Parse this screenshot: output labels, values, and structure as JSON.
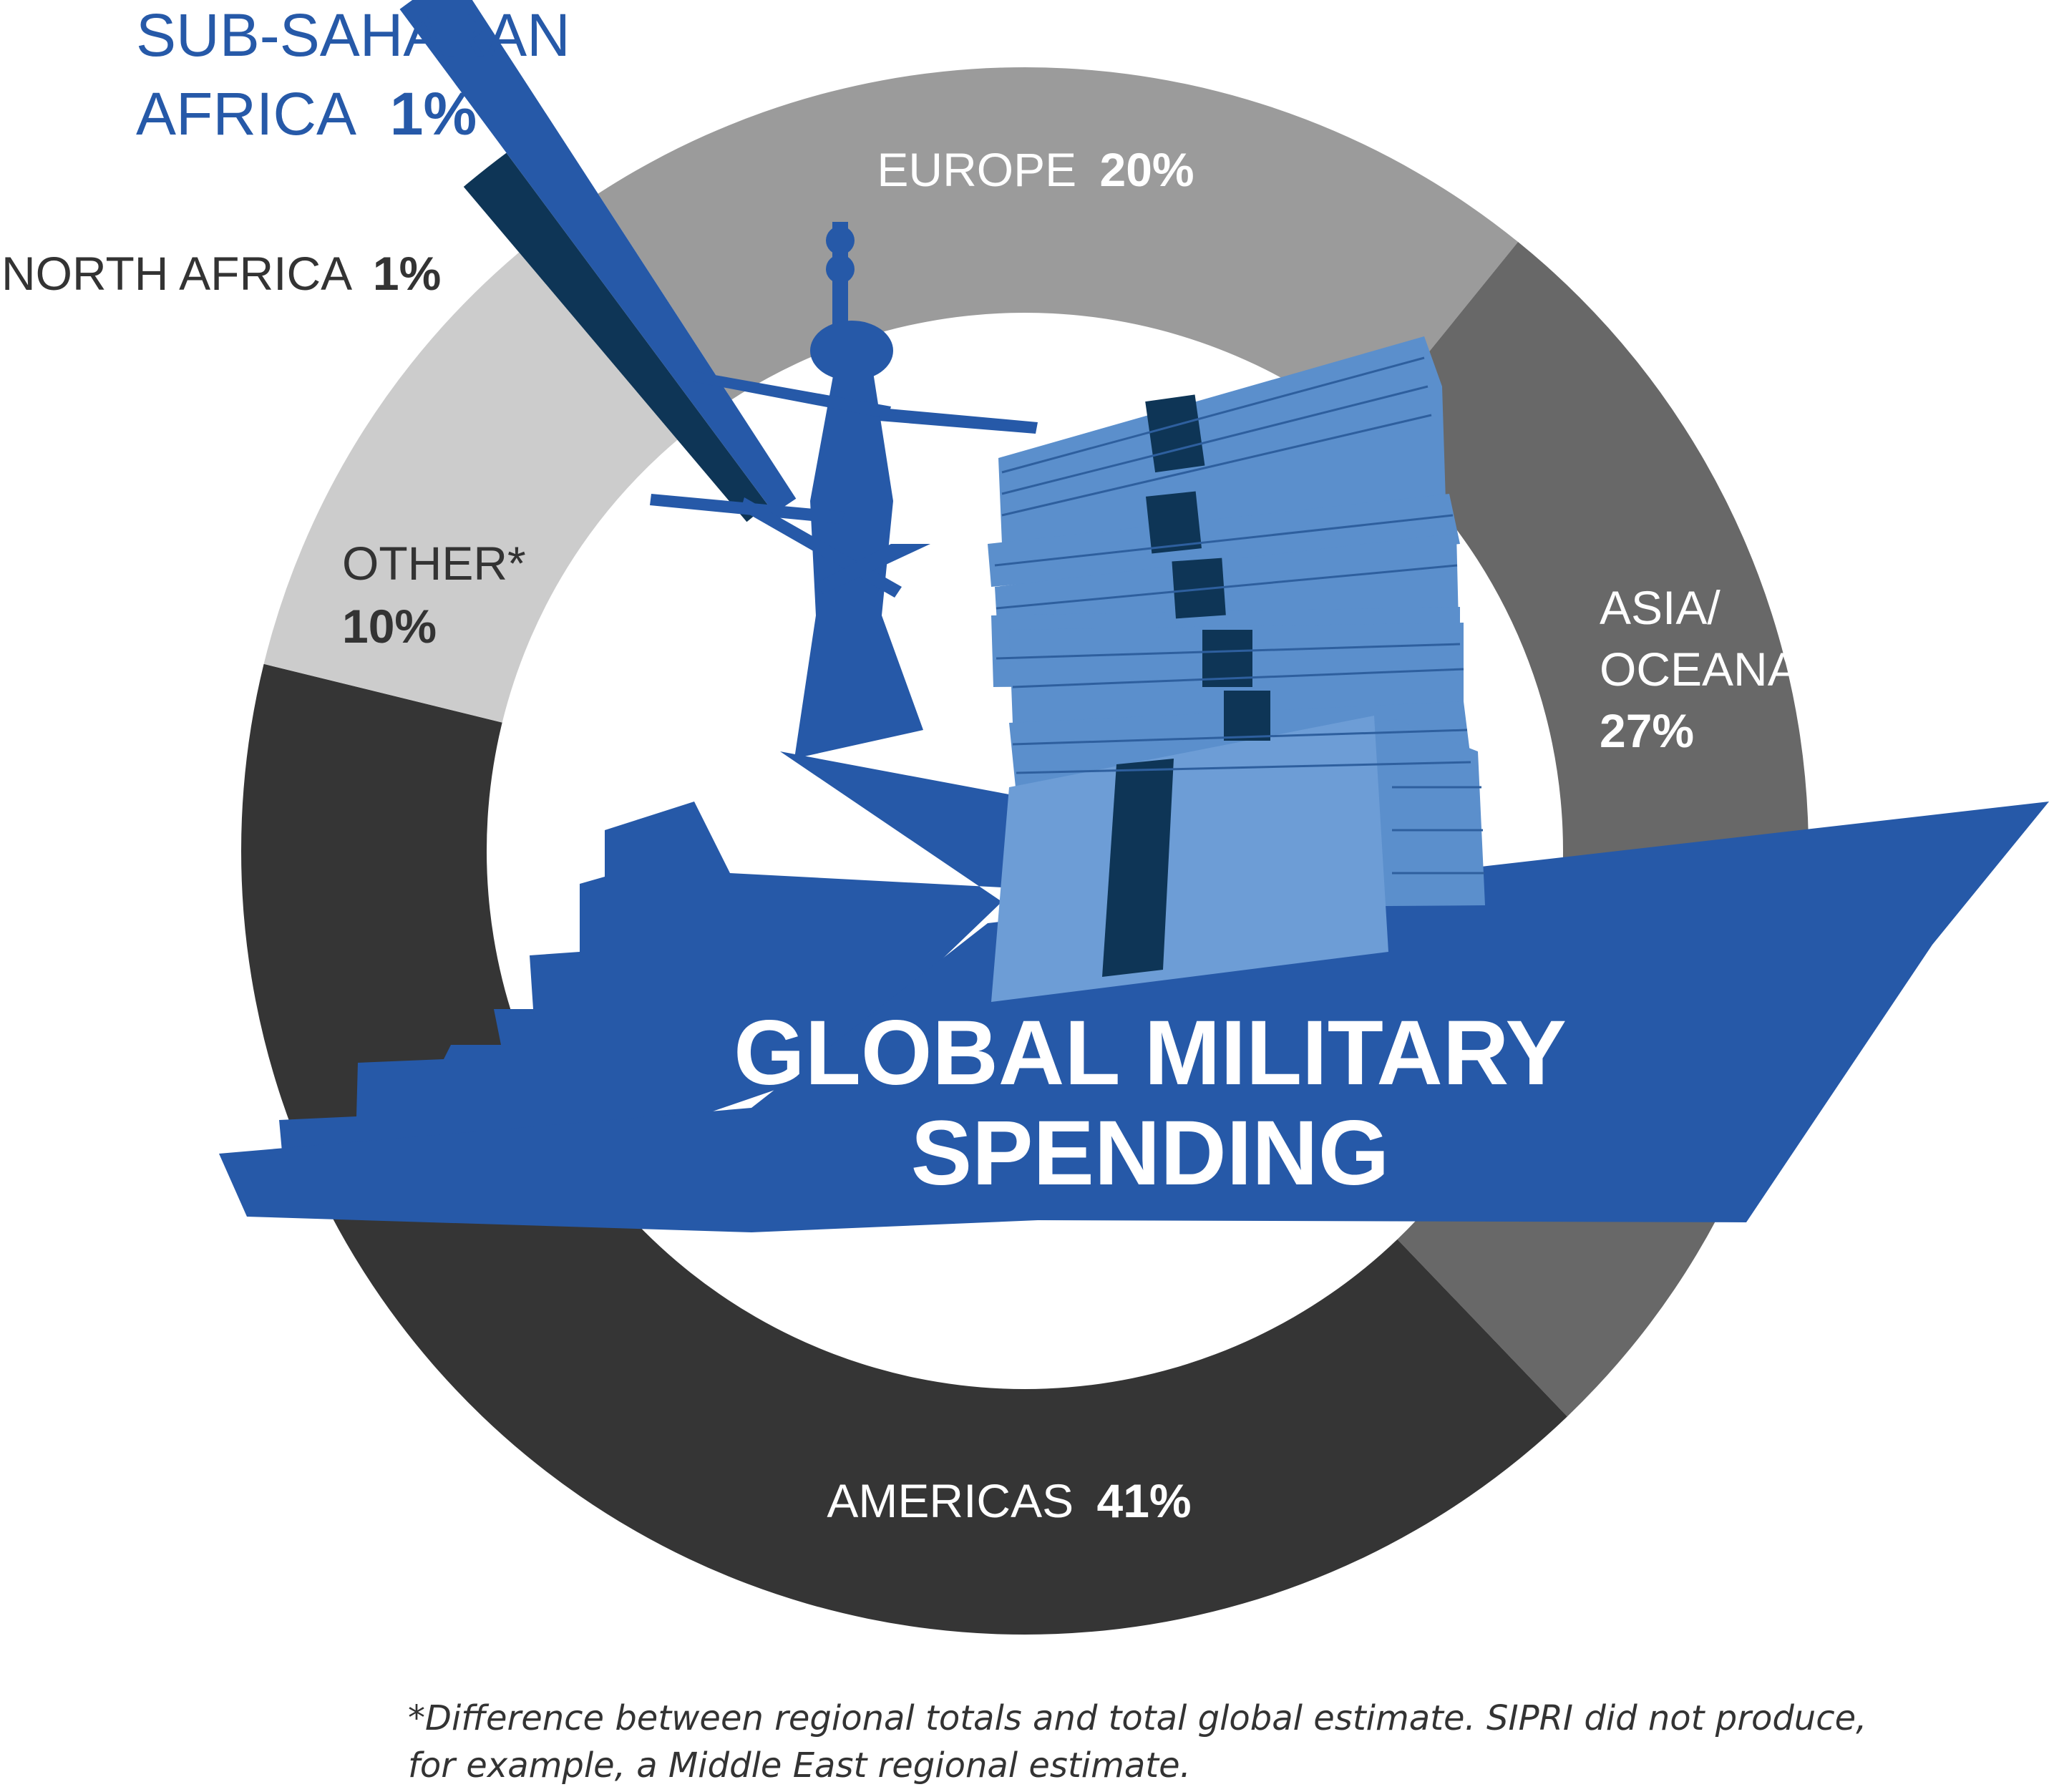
{
  "chart_data": {
    "type": "pie",
    "title": "GLOBAL MILITARY SPENDING",
    "slices": [
      {
        "label": "EUROPE",
        "pct_text": "20%",
        "value": 20,
        "color": "#9b9b9b",
        "text_color": "#ffffff"
      },
      {
        "label": "ASIA/ OCEANA",
        "pct_text": "27%",
        "value": 27,
        "color": "#686868",
        "text_color": "#ffffff"
      },
      {
        "label": "AMERICAS",
        "pct_text": "41%",
        "value": 41,
        "color": "#353535",
        "text_color": "#ffffff"
      },
      {
        "label": "OTHER*",
        "pct_text": "10%",
        "value": 10,
        "color": "#cccccc",
        "text_color": "#333333"
      },
      {
        "label": "NORTH AFRICA",
        "pct_text": "1%",
        "value": 1,
        "color": "#0e3556",
        "text_color": "#333333"
      },
      {
        "label": "SUB-SAHARAN AFRICA",
        "pct_text": "1%",
        "value": 1,
        "color": "#2659a8",
        "text_color": "#2659a8"
      }
    ],
    "title_lines": [
      "GLOBAL MILITARY",
      "SPENDING"
    ]
  },
  "footnote": "*Difference between regional totals and total global estimate. SIPRI did not produce, for example, a Middle East regional estimate.",
  "colors": {
    "ship": "#2659a8",
    "money_light": "#5b8fcc",
    "money_band": "#0e3556"
  }
}
